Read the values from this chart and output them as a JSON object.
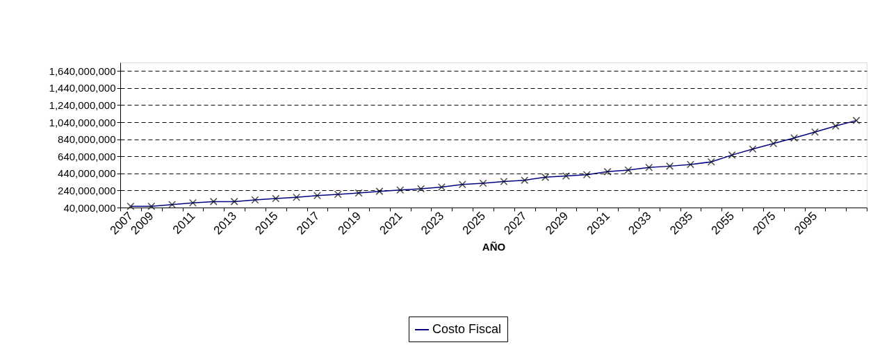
{
  "chart_data": {
    "type": "line",
    "xlabel": "AÑO",
    "categories": [
      "2007",
      "2009",
      null,
      "2011",
      null,
      "2013",
      null,
      "2015",
      null,
      "2017",
      null,
      "2019",
      null,
      "2021",
      null,
      "2023",
      null,
      "2025",
      null,
      "2027",
      null,
      "2029",
      null,
      "2031",
      null,
      "2033",
      null,
      "2035",
      null,
      "2055",
      null,
      "2075",
      null,
      "2095",
      null,
      null
    ],
    "series": [
      {
        "name": "Costo Fiscal",
        "color": "#000080",
        "values": [
          55000000,
          55000000,
          75000000,
          95000000,
          110000000,
          110000000,
          130000000,
          145000000,
          160000000,
          180000000,
          195000000,
          210000000,
          230000000,
          245000000,
          260000000,
          280000000,
          310000000,
          325000000,
          345000000,
          360000000,
          395000000,
          410000000,
          425000000,
          460000000,
          480000000,
          510000000,
          525000000,
          545000000,
          575000000,
          655000000,
          725000000,
          790000000,
          855000000,
          925000000,
          995000000,
          1060000000
        ]
      }
    ],
    "ylim": [
      40000000,
      1740000000
    ],
    "yticks": [
      {
        "value": 40000000,
        "label": "40,000,000"
      },
      {
        "value": 240000000,
        "label": "240,000,000"
      },
      {
        "value": 440000000,
        "label": "440,000,000"
      },
      {
        "value": 640000000,
        "label": "640,000,000"
      },
      {
        "value": 840000000,
        "label": "840,000,000"
      },
      {
        "value": 1040000000,
        "label": "1,040,000,000"
      },
      {
        "value": 1240000000,
        "label": "1,240,000,000"
      },
      {
        "value": 1440000000,
        "label": "1,440,000,000"
      },
      {
        "value": 1640000000,
        "label": "1,640,000,000"
      }
    ],
    "grid": "y",
    "legend": "bottom",
    "marker": "cross",
    "line_style": "solid"
  }
}
